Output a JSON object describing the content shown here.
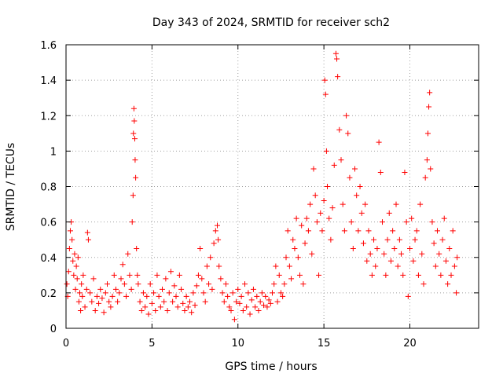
{
  "chart_data": {
    "type": "scatter",
    "title": "Day 343 of 2024, SRMTID for receiver sch2",
    "xlabel": "GPS time / hours",
    "ylabel": "SRMTID / TECUs",
    "xlim": [
      0,
      24
    ],
    "ylim": [
      0,
      1.6
    ],
    "x_ticks": [
      0,
      5,
      10,
      15,
      20
    ],
    "x_tick_labels": [
      "0",
      "5",
      "10",
      "15",
      "20"
    ],
    "y_ticks": [
      0,
      0.2,
      0.4,
      0.6,
      0.8,
      1.0,
      1.2,
      1.4,
      1.6
    ],
    "y_tick_labels": [
      "0",
      "0.2",
      "0.4",
      "0.6",
      "0.8",
      "1",
      "1.2",
      "1.4",
      "1.6"
    ],
    "grid": true,
    "marker": "+",
    "color": "#ff0000",
    "series": [
      {
        "name": "SRMTID",
        "points": [
          [
            0.05,
            0.25
          ],
          [
            0.1,
            0.18
          ],
          [
            0.15,
            0.32
          ],
          [
            0.2,
            0.45
          ],
          [
            0.25,
            0.55
          ],
          [
            0.3,
            0.6
          ],
          [
            0.35,
            0.5
          ],
          [
            0.4,
            0.38
          ],
          [
            0.45,
            0.3
          ],
          [
            0.5,
            0.42
          ],
          [
            0.55,
            0.22
          ],
          [
            0.6,
            0.35
          ],
          [
            0.65,
            0.28
          ],
          [
            0.7,
            0.4
          ],
          [
            0.75,
            0.15
          ],
          [
            0.8,
            0.2
          ],
          [
            0.85,
            0.1
          ],
          [
            0.9,
            0.25
          ],
          [
            0.95,
            0.18
          ],
          [
            1.0,
            0.3
          ],
          [
            1.1,
            0.12
          ],
          [
            1.2,
            0.22
          ],
          [
            1.25,
            0.54
          ],
          [
            1.3,
            0.5
          ],
          [
            1.4,
            0.2
          ],
          [
            1.5,
            0.15
          ],
          [
            1.6,
            0.28
          ],
          [
            1.7,
            0.1
          ],
          [
            1.8,
            0.18
          ],
          [
            1.9,
            0.14
          ],
          [
            2.0,
            0.22
          ],
          [
            2.1,
            0.17
          ],
          [
            2.2,
            0.09
          ],
          [
            2.3,
            0.2
          ],
          [
            2.4,
            0.25
          ],
          [
            2.5,
            0.15
          ],
          [
            2.6,
            0.12
          ],
          [
            2.7,
            0.18
          ],
          [
            2.8,
            0.3
          ],
          [
            2.9,
            0.22
          ],
          [
            3.0,
            0.15
          ],
          [
            3.1,
            0.2
          ],
          [
            3.2,
            0.28
          ],
          [
            3.3,
            0.36
          ],
          [
            3.4,
            0.25
          ],
          [
            3.5,
            0.18
          ],
          [
            3.6,
            0.42
          ],
          [
            3.7,
            0.3
          ],
          [
            3.8,
            0.22
          ],
          [
            3.85,
            0.6
          ],
          [
            3.9,
            0.75
          ],
          [
            3.92,
            1.1
          ],
          [
            3.95,
            1.24
          ],
          [
            3.97,
            1.17
          ],
          [
            4.0,
            1.07
          ],
          [
            4.02,
            0.95
          ],
          [
            4.05,
            0.85
          ],
          [
            4.1,
            0.45
          ],
          [
            4.15,
            0.3
          ],
          [
            4.2,
            0.25
          ],
          [
            4.3,
            0.15
          ],
          [
            4.4,
            0.1
          ],
          [
            4.5,
            0.2
          ],
          [
            4.6,
            0.12
          ],
          [
            4.7,
            0.18
          ],
          [
            4.8,
            0.08
          ],
          [
            4.9,
            0.25
          ],
          [
            5.0,
            0.14
          ],
          [
            5.1,
            0.2
          ],
          [
            5.2,
            0.1
          ],
          [
            5.3,
            0.3
          ],
          [
            5.4,
            0.18
          ],
          [
            5.5,
            0.12
          ],
          [
            5.6,
            0.22
          ],
          [
            5.7,
            0.15
          ],
          [
            5.8,
            0.28
          ],
          [
            5.9,
            0.1
          ],
          [
            6.0,
            0.2
          ],
          [
            6.1,
            0.32
          ],
          [
            6.2,
            0.15
          ],
          [
            6.3,
            0.24
          ],
          [
            6.4,
            0.18
          ],
          [
            6.5,
            0.12
          ],
          [
            6.6,
            0.3
          ],
          [
            6.7,
            0.22
          ],
          [
            6.8,
            0.14
          ],
          [
            6.9,
            0.1
          ],
          [
            7.0,
            0.18
          ],
          [
            7.1,
            0.12
          ],
          [
            7.2,
            0.15
          ],
          [
            7.3,
            0.09
          ],
          [
            7.4,
            0.2
          ],
          [
            7.5,
            0.13
          ],
          [
            7.6,
            0.24
          ],
          [
            7.7,
            0.3
          ],
          [
            7.8,
            0.45
          ],
          [
            7.9,
            0.28
          ],
          [
            8.0,
            0.2
          ],
          [
            8.1,
            0.15
          ],
          [
            8.2,
            0.35
          ],
          [
            8.3,
            0.25
          ],
          [
            8.4,
            0.4
          ],
          [
            8.5,
            0.22
          ],
          [
            8.6,
            0.48
          ],
          [
            8.7,
            0.55
          ],
          [
            8.8,
            0.58
          ],
          [
            8.85,
            0.5
          ],
          [
            8.9,
            0.35
          ],
          [
            9.0,
            0.28
          ],
          [
            9.1,
            0.2
          ],
          [
            9.2,
            0.15
          ],
          [
            9.3,
            0.25
          ],
          [
            9.4,
            0.18
          ],
          [
            9.5,
            0.12
          ],
          [
            9.6,
            0.1
          ],
          [
            9.7,
            0.2
          ],
          [
            9.8,
            0.05
          ],
          [
            9.9,
            0.15
          ],
          [
            10.0,
            0.22
          ],
          [
            10.1,
            0.14
          ],
          [
            10.2,
            0.18
          ],
          [
            10.3,
            0.1
          ],
          [
            10.4,
            0.25
          ],
          [
            10.5,
            0.12
          ],
          [
            10.6,
            0.2
          ],
          [
            10.7,
            0.08
          ],
          [
            10.8,
            0.16
          ],
          [
            10.9,
            0.22
          ],
          [
            11.0,
            0.12
          ],
          [
            11.1,
            0.18
          ],
          [
            11.2,
            0.1
          ],
          [
            11.3,
            0.15
          ],
          [
            11.4,
            0.2
          ],
          [
            11.5,
            0.13
          ],
          [
            11.6,
            0.18
          ],
          [
            11.7,
            0.12
          ],
          [
            11.8,
            0.16
          ],
          [
            11.9,
            0.14
          ],
          [
            12.0,
            0.2
          ],
          [
            12.1,
            0.25
          ],
          [
            12.2,
            0.35
          ],
          [
            12.3,
            0.15
          ],
          [
            12.4,
            0.3
          ],
          [
            12.5,
            0.2
          ],
          [
            12.6,
            0.18
          ],
          [
            12.7,
            0.25
          ],
          [
            12.8,
            0.4
          ],
          [
            12.9,
            0.55
          ],
          [
            13.0,
            0.35
          ],
          [
            13.1,
            0.28
          ],
          [
            13.2,
            0.5
          ],
          [
            13.3,
            0.45
          ],
          [
            13.4,
            0.62
          ],
          [
            13.5,
            0.4
          ],
          [
            13.6,
            0.3
          ],
          [
            13.7,
            0.58
          ],
          [
            13.8,
            0.25
          ],
          [
            13.9,
            0.48
          ],
          [
            14.0,
            0.62
          ],
          [
            14.1,
            0.55
          ],
          [
            14.2,
            0.7
          ],
          [
            14.3,
            0.42
          ],
          [
            14.4,
            0.9
          ],
          [
            14.5,
            0.75
          ],
          [
            14.6,
            0.6
          ],
          [
            14.7,
            0.3
          ],
          [
            14.8,
            0.65
          ],
          [
            14.9,
            0.55
          ],
          [
            15.0,
            0.72
          ],
          [
            15.05,
            1.4
          ],
          [
            15.1,
            1.32
          ],
          [
            15.15,
            1.0
          ],
          [
            15.2,
            0.8
          ],
          [
            15.3,
            0.62
          ],
          [
            15.4,
            0.5
          ],
          [
            15.5,
            0.68
          ],
          [
            15.6,
            0.92
          ],
          [
            15.7,
            1.55
          ],
          [
            15.75,
            1.52
          ],
          [
            15.8,
            1.42
          ],
          [
            15.9,
            1.12
          ],
          [
            16.0,
            0.95
          ],
          [
            16.1,
            0.7
          ],
          [
            16.2,
            0.55
          ],
          [
            16.3,
            1.2
          ],
          [
            16.4,
            1.1
          ],
          [
            16.5,
            0.85
          ],
          [
            16.6,
            0.6
          ],
          [
            16.7,
            0.45
          ],
          [
            16.8,
            0.9
          ],
          [
            16.9,
            0.75
          ],
          [
            17.0,
            0.55
          ],
          [
            17.1,
            0.8
          ],
          [
            17.2,
            0.65
          ],
          [
            17.3,
            0.48
          ],
          [
            17.4,
            0.7
          ],
          [
            17.5,
            0.38
          ],
          [
            17.6,
            0.55
          ],
          [
            17.7,
            0.42
          ],
          [
            17.8,
            0.3
          ],
          [
            17.9,
            0.5
          ],
          [
            18.0,
            0.35
          ],
          [
            18.1,
            0.45
          ],
          [
            18.2,
            1.05
          ],
          [
            18.3,
            0.88
          ],
          [
            18.4,
            0.6
          ],
          [
            18.5,
            0.42
          ],
          [
            18.6,
            0.3
          ],
          [
            18.7,
            0.5
          ],
          [
            18.8,
            0.65
          ],
          [
            18.9,
            0.38
          ],
          [
            19.0,
            0.55
          ],
          [
            19.1,
            0.45
          ],
          [
            19.2,
            0.7
          ],
          [
            19.3,
            0.35
          ],
          [
            19.4,
            0.5
          ],
          [
            19.5,
            0.42
          ],
          [
            19.6,
            0.3
          ],
          [
            19.7,
            0.88
          ],
          [
            19.8,
            0.6
          ],
          [
            19.9,
            0.18
          ],
          [
            20.0,
            0.45
          ],
          [
            20.1,
            0.62
          ],
          [
            20.2,
            0.38
          ],
          [
            20.3,
            0.5
          ],
          [
            20.4,
            0.55
          ],
          [
            20.5,
            0.3
          ],
          [
            20.6,
            0.7
          ],
          [
            20.7,
            0.42
          ],
          [
            20.8,
            0.25
          ],
          [
            20.9,
            0.85
          ],
          [
            21.0,
            0.95
          ],
          [
            21.05,
            1.1
          ],
          [
            21.1,
            1.25
          ],
          [
            21.15,
            1.33
          ],
          [
            21.2,
            0.9
          ],
          [
            21.3,
            0.6
          ],
          [
            21.4,
            0.48
          ],
          [
            21.5,
            0.35
          ],
          [
            21.6,
            0.55
          ],
          [
            21.7,
            0.42
          ],
          [
            21.8,
            0.3
          ],
          [
            21.9,
            0.5
          ],
          [
            22.0,
            0.62
          ],
          [
            22.1,
            0.38
          ],
          [
            22.2,
            0.25
          ],
          [
            22.3,
            0.45
          ],
          [
            22.4,
            0.3
          ],
          [
            22.5,
            0.55
          ],
          [
            22.6,
            0.35
          ],
          [
            22.7,
            0.2
          ],
          [
            22.75,
            0.4
          ]
        ]
      }
    ]
  }
}
